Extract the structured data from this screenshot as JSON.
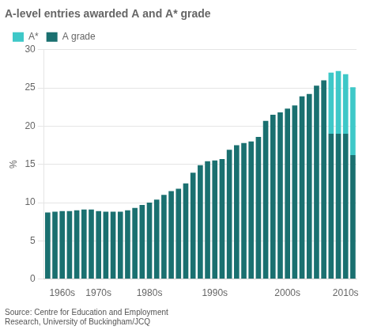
{
  "chart_data": {
    "type": "bar",
    "title": "A-level entries awarded A and A* grade",
    "annotations": [
      "Source: Centre for Education and Employment\nResearch, University of Buckingham/JCQ"
    ],
    "ylabel": "%",
    "categories": [
      null,
      null,
      "1960s",
      null,
      null,
      null,
      null,
      "1970s",
      null,
      null,
      null,
      null,
      null,
      null,
      "1980s",
      null,
      null,
      null,
      null,
      null,
      null,
      null,
      null,
      "1990s",
      null,
      null,
      null,
      null,
      null,
      null,
      null,
      null,
      null,
      "2000s",
      null,
      null,
      null,
      null,
      null,
      null,
      null,
      "2010s",
      null
    ],
    "series": [
      {
        "name": "A grade",
        "color": "#1a7070",
        "values": [
          8.7,
          8.8,
          8.9,
          8.9,
          9.0,
          9.1,
          9.1,
          8.9,
          8.8,
          8.8,
          8.8,
          9.0,
          9.3,
          9.7,
          10.0,
          10.4,
          11.0,
          11.5,
          11.8,
          12.5,
          13.9,
          14.9,
          15.4,
          15.5,
          15.7,
          16.9,
          17.5,
          17.8,
          18.0,
          18.6,
          20.7,
          21.5,
          21.8,
          22.3,
          22.7,
          23.9,
          24.2,
          25.3,
          26.0,
          19.0,
          19.0,
          19.0,
          16.2
        ]
      },
      {
        "name": "A*",
        "color": "#3ec8c8",
        "values": [
          0.0,
          0.0,
          0.0,
          0.0,
          0.0,
          0.0,
          0.0,
          0.0,
          0.0,
          0.0,
          0.0,
          0.0,
          0.0,
          0.0,
          0.0,
          0.0,
          0.0,
          0.0,
          0.0,
          0.0,
          0.0,
          0.0,
          0.0,
          0.0,
          0.0,
          0.0,
          0.0,
          0.0,
          0.0,
          0.0,
          0.0,
          0.0,
          0.0,
          0.0,
          0.0,
          0.0,
          0.0,
          0.0,
          0.0,
          8.0,
          8.2,
          7.8,
          8.9
        ]
      }
    ],
    "stacked": true,
    "ylim": [
      0,
      30
    ],
    "yticks": [
      0,
      5,
      10,
      15,
      20,
      25,
      30
    ],
    "grid": true,
    "legend": "top-left"
  }
}
